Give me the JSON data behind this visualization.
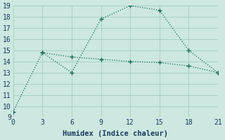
{
  "line1_x": [
    0,
    3,
    6,
    9,
    12,
    15,
    18,
    21
  ],
  "line1_y": [
    9.5,
    14.8,
    13.0,
    17.8,
    19.0,
    18.6,
    15.0,
    13.0
  ],
  "line2_x": [
    3,
    6,
    9,
    12,
    15,
    18,
    21
  ],
  "line2_y": [
    14.8,
    14.4,
    14.2,
    14.0,
    13.9,
    13.6,
    13.0
  ],
  "line_color": "#1a6b5a",
  "bg_color": "#cce8e0",
  "grid_color": "#aad0c8",
  "xlabel": "Humidex (Indice chaleur)",
  "xlim": [
    0,
    21
  ],
  "ylim": [
    9,
    19
  ],
  "xticks": [
    0,
    3,
    6,
    9,
    12,
    15,
    18,
    21
  ],
  "yticks": [
    9,
    10,
    11,
    12,
    13,
    14,
    15,
    16,
    17,
    18,
    19
  ],
  "xlabel_fontsize": 7.5,
  "tick_fontsize": 7
}
